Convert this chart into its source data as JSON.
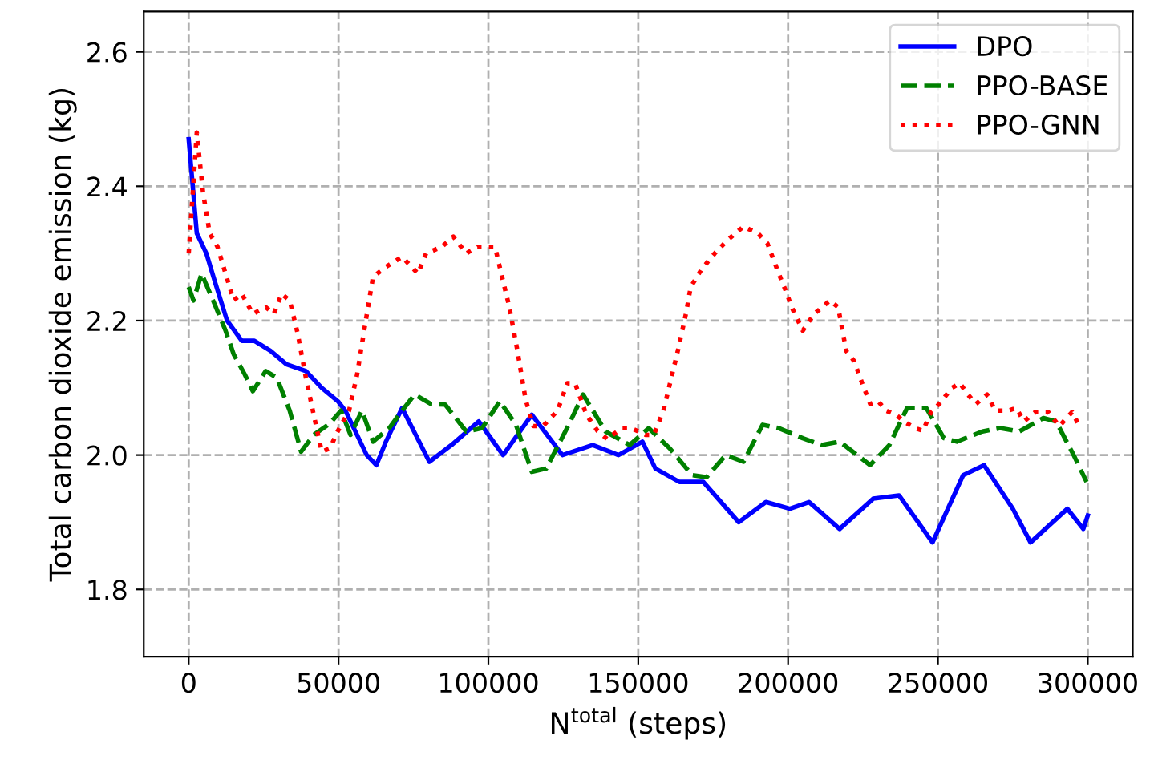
{
  "chart_data": {
    "type": "line",
    "xlabel": "N$^{total}$ (steps)",
    "ylabel": "Total carbon dioxide emission (kg)",
    "xlim": [
      -15000,
      315000
    ],
    "ylim": [
      1.7,
      2.66
    ],
    "xticks": [
      0,
      50000,
      100000,
      150000,
      200000,
      250000,
      300000
    ],
    "yticks": [
      {
        "value": 1.8,
        "label": "1.8"
      },
      {
        "value": 2.0,
        "label": "2.0"
      },
      {
        "value": 2.2,
        "label": "2.2"
      },
      {
        "value": 2.4,
        "label": "2.4"
      },
      {
        "value": 2.6,
        "label": "2.6"
      }
    ],
    "grid": true,
    "legend": "top right",
    "series": [
      {
        "name": "DPO",
        "color": "#0000ff",
        "line_style": "solid",
        "x": [
          0,
          2700,
          5900,
          8600,
          10700,
          12800,
          17700,
          21900,
          27300,
          32600,
          39100,
          44400,
          49800,
          52400,
          55100,
          59400,
          62600,
          65800,
          71200,
          80300,
          87700,
          96800,
          104900,
          114500,
          124700,
          134800,
          143400,
          151400,
          155700,
          163700,
          171700,
          183500,
          192600,
          200600,
          207000,
          217200,
          228400,
          237000,
          248200,
          258400,
          265400,
          275000,
          280900,
          293200,
          298500,
          300000
        ],
        "values": [
          2.47,
          2.33,
          2.3,
          2.26,
          2.23,
          2.2,
          2.17,
          2.17,
          2.155,
          2.135,
          2.125,
          2.1,
          2.08,
          2.065,
          2.04,
          2.0,
          1.985,
          2.02,
          2.07,
          1.99,
          2.015,
          2.05,
          2.0,
          2.06,
          2.0,
          2.015,
          2.0,
          2.02,
          1.98,
          1.96,
          1.96,
          1.9,
          1.93,
          1.92,
          1.93,
          1.89,
          1.935,
          1.94,
          1.87,
          1.97,
          1.985,
          1.92,
          1.87,
          1.92,
          1.89,
          1.91
        ]
      },
      {
        "name": "PPO-BASE",
        "color": "#008000",
        "line_style": "dashed",
        "x": [
          0,
          1600,
          4300,
          8600,
          12300,
          15000,
          18700,
          21400,
          25700,
          29400,
          33700,
          37500,
          41700,
          47100,
          50800,
          54000,
          57800,
          61500,
          66900,
          71200,
          75400,
          80800,
          85600,
          92600,
          97900,
          103800,
          109200,
          114500,
          119300,
          126800,
          131600,
          139100,
          147100,
          153500,
          160500,
          168000,
          172800,
          179200,
          185100,
          191500,
          196900,
          204900,
          211300,
          217200,
          227400,
          233800,
          239700,
          246100,
          252000,
          256300,
          264800,
          270700,
          277100,
          285200,
          289400,
          295300,
          299600
        ],
        "values": [
          2.25,
          2.23,
          2.27,
          2.225,
          2.185,
          2.15,
          2.12,
          2.095,
          2.125,
          2.115,
          2.066,
          2.005,
          2.03,
          2.047,
          2.066,
          2.03,
          2.066,
          2.02,
          2.04,
          2.066,
          2.09,
          2.076,
          2.075,
          2.035,
          2.04,
          2.08,
          2.045,
          1.975,
          1.98,
          2.045,
          2.09,
          2.035,
          2.015,
          2.04,
          2.01,
          1.97,
          1.967,
          2.0,
          1.99,
          2.045,
          2.04,
          2.025,
          2.015,
          2.02,
          1.985,
          2.015,
          2.07,
          2.07,
          2.025,
          2.02,
          2.035,
          2.04,
          2.035,
          2.055,
          2.05,
          2.0,
          1.96
        ]
      },
      {
        "name": "PPO-GNN",
        "color": "#ff0000",
        "line_style": "dotted",
        "x": [
          0,
          2700,
          4800,
          7000,
          9600,
          12300,
          15000,
          17700,
          21400,
          25700,
          28400,
          31000,
          33700,
          36400,
          39100,
          41700,
          44400,
          47100,
          49800,
          53500,
          56200,
          58900,
          61500,
          65800,
          71200,
          76500,
          79200,
          84500,
          88300,
          92600,
          96300,
          99500,
          102200,
          104300,
          107000,
          109700,
          112400,
          115000,
          118200,
          123100,
          126300,
          128900,
          132700,
          136400,
          139600,
          144500,
          147700,
          152500,
          155200,
          158400,
          163200,
          165900,
          167500,
          171200,
          175500,
          179800,
          185100,
          189900,
          193100,
          196900,
          199600,
          201200,
          204900,
          208700,
          214000,
          216700,
          219400,
          222000,
          224700,
          227400,
          230100,
          232700,
          236000,
          238600,
          242400,
          245000,
          247700,
          250400,
          254700,
          257300,
          260000,
          262700,
          266400,
          269100,
          273400,
          276100,
          278700,
          282500,
          286800,
          290500,
          294800,
          297500
        ],
        "values": [
          2.3,
          2.48,
          2.39,
          2.33,
          2.31,
          2.27,
          2.23,
          2.24,
          2.21,
          2.22,
          2.21,
          2.24,
          2.23,
          2.18,
          2.115,
          2.06,
          2.005,
          2.01,
          2.036,
          2.066,
          2.12,
          2.195,
          2.265,
          2.28,
          2.295,
          2.27,
          2.3,
          2.31,
          2.325,
          2.3,
          2.31,
          2.31,
          2.31,
          2.27,
          2.22,
          2.155,
          2.083,
          2.043,
          2.043,
          2.066,
          2.107,
          2.107,
          2.06,
          2.036,
          2.024,
          2.04,
          2.04,
          2.03,
          2.03,
          2.066,
          2.155,
          2.21,
          2.25,
          2.277,
          2.3,
          2.32,
          2.34,
          2.33,
          2.315,
          2.27,
          2.24,
          2.22,
          2.185,
          2.21,
          2.23,
          2.22,
          2.155,
          2.14,
          2.107,
          2.076,
          2.08,
          2.066,
          2.06,
          2.05,
          2.04,
          2.036,
          2.064,
          2.076,
          2.1,
          2.107,
          2.09,
          2.076,
          2.09,
          2.066,
          2.066,
          2.07,
          2.05,
          2.064,
          2.064,
          2.043,
          2.064,
          2.04
        ]
      }
    ]
  }
}
